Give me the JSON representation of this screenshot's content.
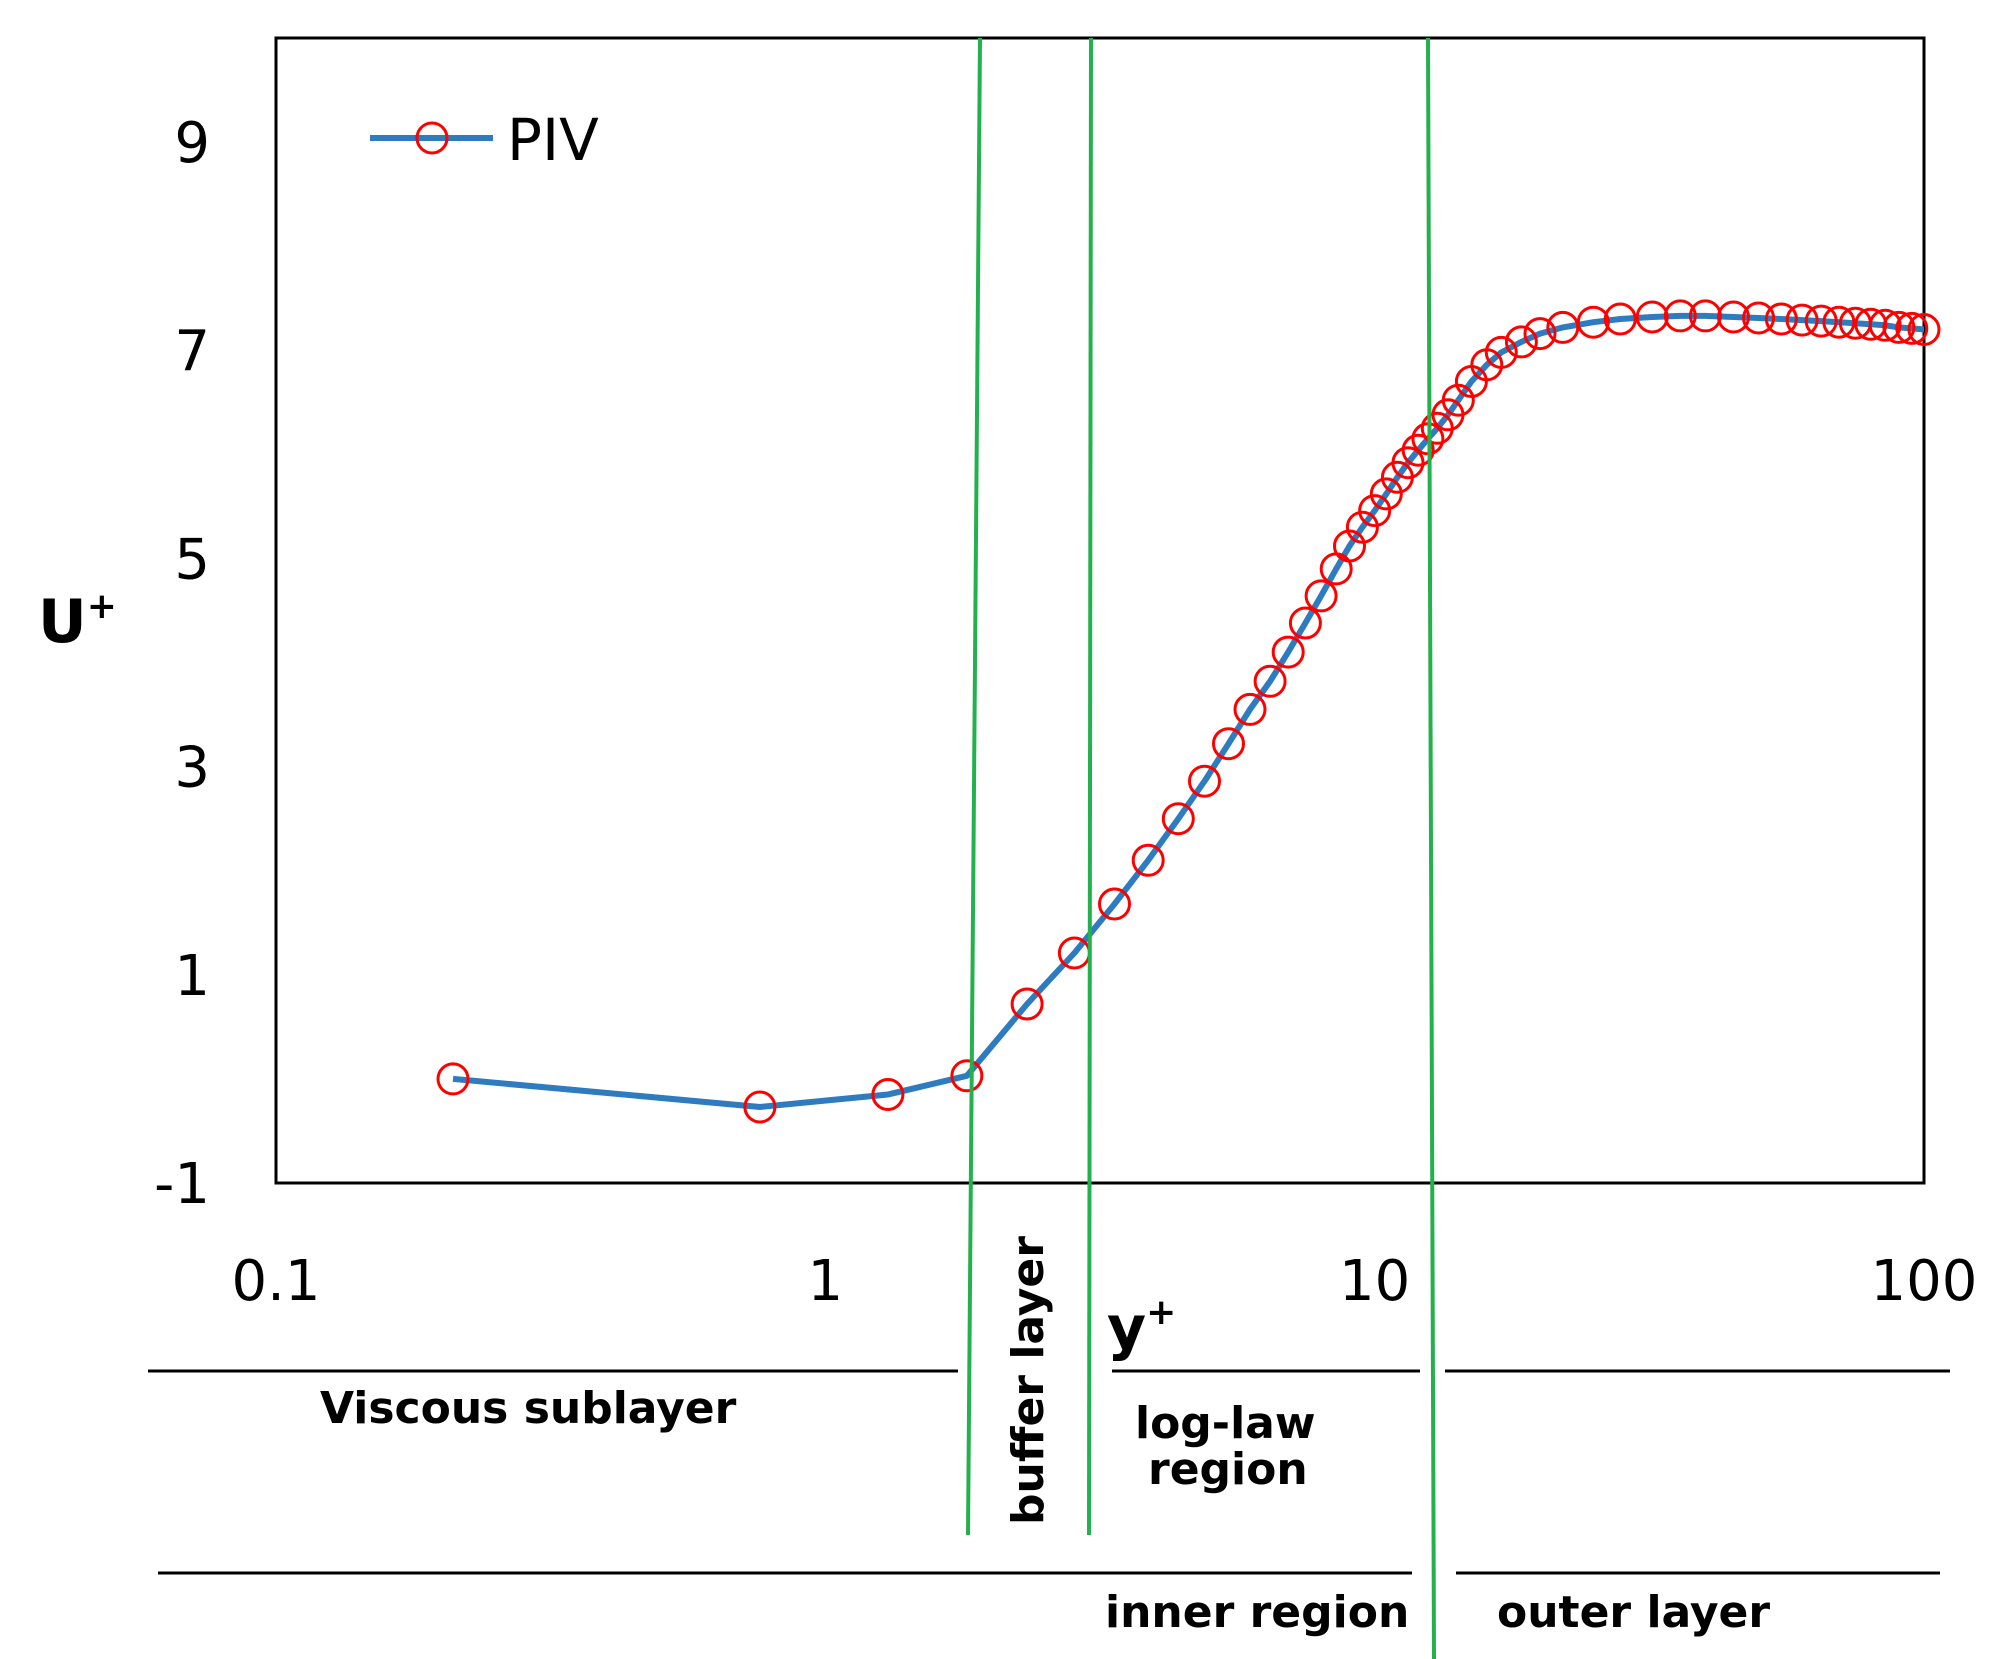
{
  "chart_data": {
    "type": "line",
    "x_scale": "log",
    "xlim": [
      0.1,
      100
    ],
    "ylim": [
      -1,
      10
    ],
    "x_ticks": [
      0.1,
      1,
      10,
      100
    ],
    "x_tick_labels": [
      "0.1",
      "1",
      "10",
      "100"
    ],
    "y_ticks": [
      -1,
      1,
      3,
      5,
      7,
      9
    ],
    "y_tick_labels": [
      "-1",
      "1",
      "3",
      "5",
      "7",
      "9"
    ],
    "xlabel": "y",
    "xlabel_sup": "+",
    "ylabel": "U",
    "ylabel_sup": "+",
    "legend": "PIV",
    "legend_position": "top-left",
    "colors": {
      "line": "#2e7bbf",
      "marker": "#ff0000",
      "divider": "#22b14c"
    },
    "series": [
      {
        "name": "PIV",
        "x": [
          0.21,
          0.76,
          1.3,
          1.81,
          2.33,
          2.84,
          3.36,
          3.87,
          4.39,
          4.9,
          5.42,
          5.93,
          6.45,
          6.96,
          7.48,
          7.99,
          8.51,
          9.0,
          9.5,
          10.0,
          10.5,
          11.0,
          11.5,
          12.0,
          12.5,
          13.0,
          13.6,
          14.2,
          15.0,
          16.0,
          17.0,
          18.5,
          20.0,
          22.0,
          25.0,
          28.0,
          32.0,
          36.0,
          40.0,
          45.0,
          50.0,
          55.0,
          60.0,
          65.0,
          70.0,
          75.0,
          80.0,
          85.0,
          90.0,
          95.0,
          100.0
        ],
        "y": [
          0.0,
          -0.27,
          -0.15,
          0.03,
          0.72,
          1.21,
          1.68,
          2.1,
          2.5,
          2.86,
          3.22,
          3.55,
          3.82,
          4.1,
          4.38,
          4.64,
          4.9,
          5.12,
          5.3,
          5.46,
          5.62,
          5.78,
          5.92,
          6.04,
          6.15,
          6.25,
          6.38,
          6.52,
          6.7,
          6.86,
          6.98,
          7.08,
          7.16,
          7.22,
          7.27,
          7.3,
          7.32,
          7.33,
          7.33,
          7.32,
          7.31,
          7.3,
          7.29,
          7.28,
          7.27,
          7.26,
          7.25,
          7.24,
          7.22,
          7.21,
          7.2
        ]
      }
    ],
    "dividers_yplus": [
      1.8,
      2.95,
      12.0
    ],
    "annotations": {
      "viscous": "Viscous sublayer",
      "buffer": "buffer layer",
      "loglaw_line1": "log-law",
      "loglaw_line2": "region",
      "inner": "inner region",
      "outer": "outer layer"
    }
  }
}
